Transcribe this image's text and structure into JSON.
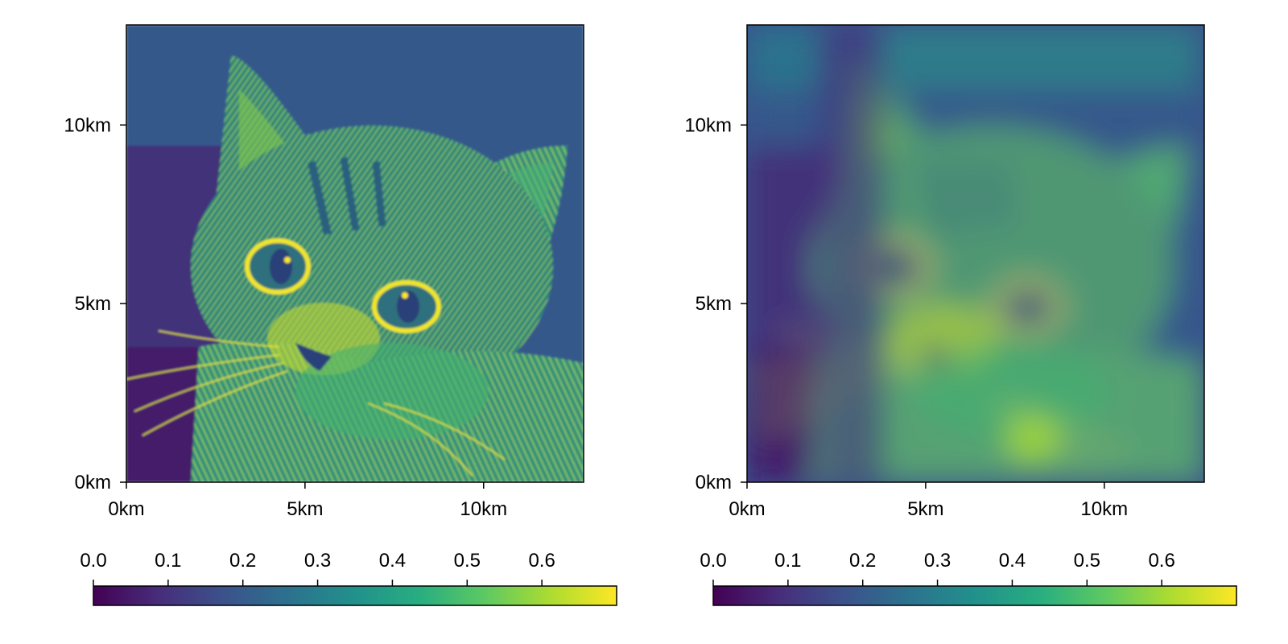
{
  "chart_data": [
    {
      "type": "heatmap",
      "title": "",
      "xlabel": "",
      "ylabel": "",
      "x_ticks": [
        {
          "value": 0,
          "label": "0km"
        },
        {
          "value": 5,
          "label": "5km"
        },
        {
          "value": 10,
          "label": "10km"
        }
      ],
      "y_ticks": [
        {
          "value": 0,
          "label": "0km"
        },
        {
          "value": 5,
          "label": "5km"
        },
        {
          "value": 10,
          "label": "10km"
        }
      ],
      "xlim": [
        0,
        12.8
      ],
      "ylim": [
        0,
        12.8
      ],
      "image_content": "grayscale cat photograph, full resolution",
      "colormap": "viridis",
      "colorbar": {
        "position": "bottom",
        "ticks_position": "top",
        "range": [
          0,
          0.7
        ],
        "ticks": [
          "0.0",
          "0.1",
          "0.2",
          "0.3",
          "0.4",
          "0.5",
          "0.6"
        ],
        "tick_values": [
          0,
          0.1,
          0.2,
          0.3,
          0.4,
          0.5,
          0.6
        ]
      }
    },
    {
      "type": "heatmap",
      "title": "",
      "xlabel": "",
      "ylabel": "",
      "x_ticks": [
        {
          "value": 0,
          "label": "0km"
        },
        {
          "value": 5,
          "label": "5km"
        },
        {
          "value": 10,
          "label": "10km"
        }
      ],
      "y_ticks": [
        {
          "value": 0,
          "label": "0km"
        },
        {
          "value": 5,
          "label": "5km"
        },
        {
          "value": 10,
          "label": "10km"
        }
      ],
      "xlim": [
        0,
        12.8
      ],
      "ylim": [
        0,
        12.8
      ],
      "image_content": "same cat image, heavily blurred",
      "colormap": "viridis",
      "colorbar": {
        "position": "bottom",
        "ticks_position": "top",
        "range": [
          0,
          0.7
        ],
        "ticks": [
          "0.0",
          "0.1",
          "0.2",
          "0.3",
          "0.4",
          "0.5",
          "0.6"
        ],
        "tick_values": [
          0,
          0.1,
          0.2,
          0.3,
          0.4,
          0.5,
          0.6
        ]
      }
    }
  ],
  "viridis_stops": [
    "#440154",
    "#472d7b",
    "#3b528b",
    "#2c728e",
    "#21918c",
    "#28ae80",
    "#5ec962",
    "#addc30",
    "#fde725"
  ]
}
